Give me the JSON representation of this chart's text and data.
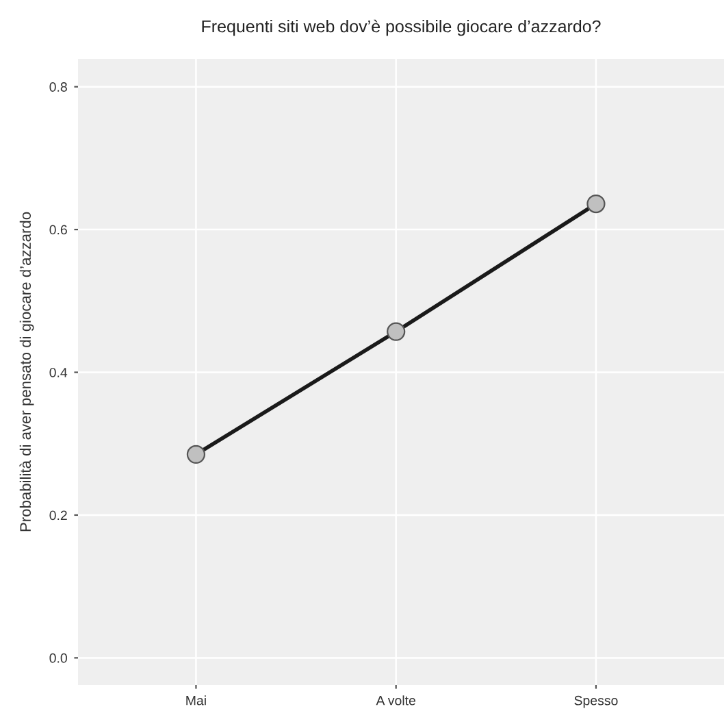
{
  "chart_data": {
    "type": "line",
    "title": "Frequenti siti web dov’è possibile giocare d’azzardo?",
    "ylabel": "Probabilità di aver pensato di giocare d’azzardo",
    "categories": [
      "Mai",
      "A volte",
      "Spesso"
    ],
    "series": [
      {
        "color": "#1a1a1a",
        "values": [
          0.285,
          0.457,
          0.636
        ]
      }
    ],
    "marker": "circle",
    "line_style": "solid",
    "grid": true,
    "ylim": [
      -0.038,
      0.839
    ],
    "yticks": [
      {
        "value": 0,
        "label": "0.0"
      },
      0.2,
      0.4,
      0.6,
      0.8
    ]
  }
}
